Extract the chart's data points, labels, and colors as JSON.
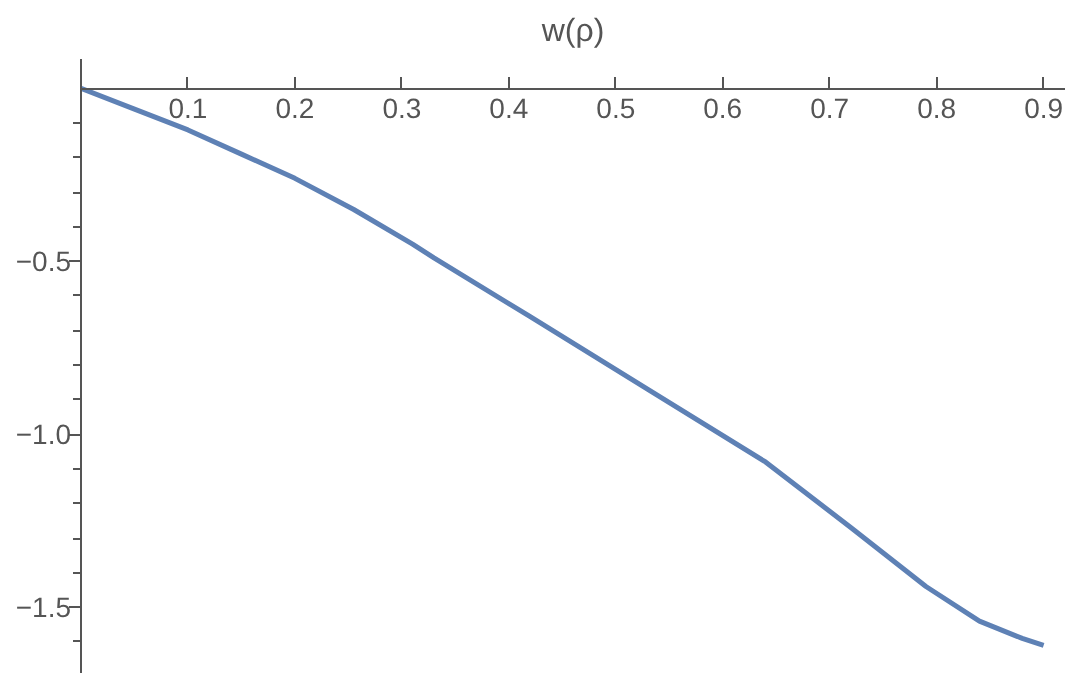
{
  "chart_data": {
    "type": "line",
    "ylabel": "w(ρ)",
    "x": [
      0,
      0.05,
      0.1,
      0.15,
      0.2,
      0.255,
      0.31,
      0.33,
      0.42,
      0.53,
      0.64,
      0.72,
      0.79,
      0.84,
      0.88,
      0.9
    ],
    "series": [
      {
        "color": "#5e81b5",
        "values": [
          0,
          -0.06,
          -0.12,
          -0.19,
          -0.26,
          -0.35,
          -0.45,
          -0.49,
          -0.66,
          -0.87,
          -1.08,
          -1.27,
          -1.44,
          -1.54,
          -1.59,
          -1.61
        ]
      }
    ],
    "xlim": [
      0,
      0.92
    ],
    "ylim": [
      -1.69,
      0.085
    ],
    "xticks": [
      0.1,
      0.2,
      0.3,
      0.4,
      0.5,
      0.6,
      0.7,
      0.8,
      0.9
    ],
    "yticks": [
      {
        "value": -0.1,
        "label": null
      },
      {
        "value": -0.2,
        "label": null
      },
      {
        "value": -0.3,
        "label": null
      },
      {
        "value": -0.4,
        "label": null
      },
      {
        "value": -0.5,
        "label": "−0.5"
      },
      {
        "value": -0.6,
        "label": null
      },
      {
        "value": -0.7,
        "label": null
      },
      {
        "value": -0.8,
        "label": null
      },
      {
        "value": -0.9,
        "label": null
      },
      {
        "value": -1.0,
        "label": "−1.0"
      },
      {
        "value": -1.1,
        "label": null
      },
      {
        "value": -1.2,
        "label": null
      },
      {
        "value": -1.3,
        "label": null
      },
      {
        "value": -1.4,
        "label": null
      },
      {
        "value": -1.5,
        "label": "−1.5"
      },
      {
        "value": -1.6,
        "label": null
      }
    ],
    "grid": false,
    "marker": "none",
    "line_style": "solid"
  }
}
